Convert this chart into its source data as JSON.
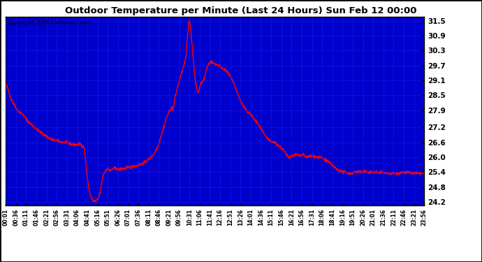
{
  "title": "Outdoor Temperature per Minute (Last 24 Hours) Sun Feb 12 00:00",
  "copyright": "Copyright 2006 Curtronics.com",
  "bg_color": "#0000cc",
  "outer_bg_color": "#ffffff",
  "line_color": "#ff0000",
  "line_width": 1.0,
  "yticks": [
    24.2,
    24.8,
    25.4,
    26.0,
    26.6,
    27.2,
    27.9,
    28.5,
    29.1,
    29.7,
    30.3,
    30.9,
    31.5
  ],
  "ylim": [
    24.05,
    31.65
  ],
  "xtick_labels": [
    "00:01",
    "00:36",
    "01:11",
    "01:46",
    "02:21",
    "02:56",
    "03:31",
    "04:06",
    "04:41",
    "05:16",
    "05:51",
    "06:26",
    "07:01",
    "07:36",
    "08:11",
    "08:46",
    "09:21",
    "09:56",
    "10:31",
    "11:06",
    "11:41",
    "12:16",
    "12:51",
    "13:26",
    "14:01",
    "14:36",
    "15:11",
    "15:46",
    "16:21",
    "16:56",
    "17:31",
    "18:06",
    "18:41",
    "19:16",
    "19:51",
    "20:26",
    "21:01",
    "21:36",
    "22:11",
    "22:46",
    "23:21",
    "23:56"
  ],
  "grid_color": "#2222ff",
  "grid_alpha": 0.85,
  "keypoints": [
    [
      0,
      29.0
    ],
    [
      20,
      28.3
    ],
    [
      40,
      27.9
    ],
    [
      60,
      27.7
    ],
    [
      80,
      27.4
    ],
    [
      100,
      27.2
    ],
    [
      120,
      27.0
    ],
    [
      140,
      26.85
    ],
    [
      160,
      26.7
    ],
    [
      180,
      26.65
    ],
    [
      200,
      26.6
    ],
    [
      220,
      26.55
    ],
    [
      240,
      26.5
    ],
    [
      255,
      26.55
    ],
    [
      260,
      26.5
    ],
    [
      265,
      26.45
    ],
    [
      270,
      26.35
    ],
    [
      275,
      25.8
    ],
    [
      280,
      25.2
    ],
    [
      285,
      24.8
    ],
    [
      290,
      24.5
    ],
    [
      295,
      24.35
    ],
    [
      300,
      24.25
    ],
    [
      305,
      24.22
    ],
    [
      310,
      24.22
    ],
    [
      315,
      24.3
    ],
    [
      320,
      24.4
    ],
    [
      325,
      24.6
    ],
    [
      330,
      25.0
    ],
    [
      335,
      25.3
    ],
    [
      340,
      25.4
    ],
    [
      345,
      25.5
    ],
    [
      350,
      25.55
    ],
    [
      355,
      25.5
    ],
    [
      360,
      25.45
    ],
    [
      365,
      25.5
    ],
    [
      370,
      25.55
    ],
    [
      380,
      25.55
    ],
    [
      390,
      25.5
    ],
    [
      400,
      25.55
    ],
    [
      410,
      25.55
    ],
    [
      420,
      25.6
    ],
    [
      430,
      25.6
    ],
    [
      440,
      25.65
    ],
    [
      450,
      25.65
    ],
    [
      460,
      25.7
    ],
    [
      470,
      25.75
    ],
    [
      480,
      25.8
    ],
    [
      490,
      25.9
    ],
    [
      500,
      26.0
    ],
    [
      510,
      26.15
    ],
    [
      520,
      26.35
    ],
    [
      525,
      26.5
    ],
    [
      530,
      26.7
    ],
    [
      535,
      26.9
    ],
    [
      540,
      27.1
    ],
    [
      545,
      27.3
    ],
    [
      550,
      27.5
    ],
    [
      555,
      27.65
    ],
    [
      560,
      27.8
    ],
    [
      565,
      27.9
    ],
    [
      570,
      28.0
    ],
    [
      575,
      27.95
    ],
    [
      578,
      28.1
    ],
    [
      582,
      28.4
    ],
    [
      586,
      28.6
    ],
    [
      590,
      28.8
    ],
    [
      595,
      29.0
    ],
    [
      600,
      29.2
    ],
    [
      605,
      29.4
    ],
    [
      610,
      29.6
    ],
    [
      614,
      29.75
    ],
    [
      617,
      29.9
    ],
    [
      620,
      30.1
    ],
    [
      623,
      30.5
    ],
    [
      626,
      31.0
    ],
    [
      629,
      31.4
    ],
    [
      632,
      31.5
    ],
    [
      635,
      31.3
    ],
    [
      638,
      30.9
    ],
    [
      641,
      30.5
    ],
    [
      644,
      30.1
    ],
    [
      647,
      29.7
    ],
    [
      650,
      29.3
    ],
    [
      653,
      29.0
    ],
    [
      656,
      28.8
    ],
    [
      659,
      28.65
    ],
    [
      662,
      28.6
    ],
    [
      665,
      28.7
    ],
    [
      668,
      28.85
    ],
    [
      671,
      29.0
    ],
    [
      674,
      29.05
    ],
    [
      677,
      29.0
    ],
    [
      680,
      29.1
    ],
    [
      683,
      29.2
    ],
    [
      686,
      29.35
    ],
    [
      689,
      29.5
    ],
    [
      692,
      29.6
    ],
    [
      695,
      29.7
    ],
    [
      698,
      29.75
    ],
    [
      701,
      29.8
    ],
    [
      704,
      29.85
    ],
    [
      707,
      29.85
    ],
    [
      710,
      29.8
    ],
    [
      713,
      29.8
    ],
    [
      716,
      29.78
    ],
    [
      720,
      29.75
    ],
    [
      725,
      29.75
    ],
    [
      730,
      29.7
    ],
    [
      735,
      29.7
    ],
    [
      740,
      29.65
    ],
    [
      745,
      29.6
    ],
    [
      750,
      29.55
    ],
    [
      755,
      29.5
    ],
    [
      760,
      29.45
    ],
    [
      765,
      29.38
    ],
    [
      770,
      29.3
    ],
    [
      775,
      29.2
    ],
    [
      780,
      29.1
    ],
    [
      785,
      28.95
    ],
    [
      790,
      28.8
    ],
    [
      795,
      28.65
    ],
    [
      800,
      28.5
    ],
    [
      805,
      28.35
    ],
    [
      810,
      28.2
    ],
    [
      820,
      28.0
    ],
    [
      830,
      27.85
    ],
    [
      840,
      27.75
    ],
    [
      850,
      27.6
    ],
    [
      860,
      27.45
    ],
    [
      870,
      27.3
    ],
    [
      880,
      27.1
    ],
    [
      890,
      26.9
    ],
    [
      900,
      26.75
    ],
    [
      910,
      26.65
    ],
    [
      915,
      26.6
    ],
    [
      920,
      26.6
    ],
    [
      925,
      26.6
    ],
    [
      930,
      26.55
    ],
    [
      935,
      26.5
    ],
    [
      940,
      26.45
    ],
    [
      945,
      26.4
    ],
    [
      950,
      26.35
    ],
    [
      955,
      26.3
    ],
    [
      960,
      26.2
    ],
    [
      965,
      26.1
    ],
    [
      970,
      26.05
    ],
    [
      975,
      26.0
    ],
    [
      980,
      26.05
    ],
    [
      985,
      26.05
    ],
    [
      990,
      26.1
    ],
    [
      995,
      26.1
    ],
    [
      1000,
      26.1
    ],
    [
      1005,
      26.1
    ],
    [
      1010,
      26.05
    ],
    [
      1015,
      26.05
    ],
    [
      1020,
      26.1
    ],
    [
      1025,
      26.1
    ],
    [
      1030,
      26.05
    ],
    [
      1035,
      26.0
    ],
    [
      1040,
      26.0
    ],
    [
      1045,
      26.05
    ],
    [
      1050,
      26.05
    ],
    [
      1060,
      26.05
    ],
    [
      1070,
      26.0
    ],
    [
      1080,
      26.0
    ],
    [
      1090,
      25.95
    ],
    [
      1100,
      25.9
    ],
    [
      1110,
      25.8
    ],
    [
      1120,
      25.7
    ],
    [
      1130,
      25.6
    ],
    [
      1135,
      25.55
    ],
    [
      1140,
      25.5
    ],
    [
      1150,
      25.45
    ],
    [
      1160,
      25.4
    ],
    [
      1170,
      25.4
    ],
    [
      1180,
      25.35
    ],
    [
      1190,
      25.35
    ],
    [
      1200,
      25.4
    ],
    [
      1210,
      25.42
    ],
    [
      1220,
      25.4
    ],
    [
      1230,
      25.4
    ],
    [
      1240,
      25.42
    ],
    [
      1250,
      25.4
    ],
    [
      1260,
      25.4
    ],
    [
      1270,
      25.4
    ],
    [
      1280,
      25.38
    ],
    [
      1290,
      25.4
    ],
    [
      1300,
      25.38
    ],
    [
      1310,
      25.35
    ],
    [
      1320,
      25.35
    ],
    [
      1330,
      25.35
    ],
    [
      1340,
      25.35
    ],
    [
      1350,
      25.35
    ],
    [
      1360,
      25.4
    ],
    [
      1370,
      25.38
    ],
    [
      1380,
      25.38
    ],
    [
      1390,
      25.38
    ],
    [
      1400,
      25.35
    ],
    [
      1410,
      25.35
    ],
    [
      1420,
      25.35
    ],
    [
      1430,
      25.35
    ],
    [
      1439,
      25.35
    ]
  ]
}
